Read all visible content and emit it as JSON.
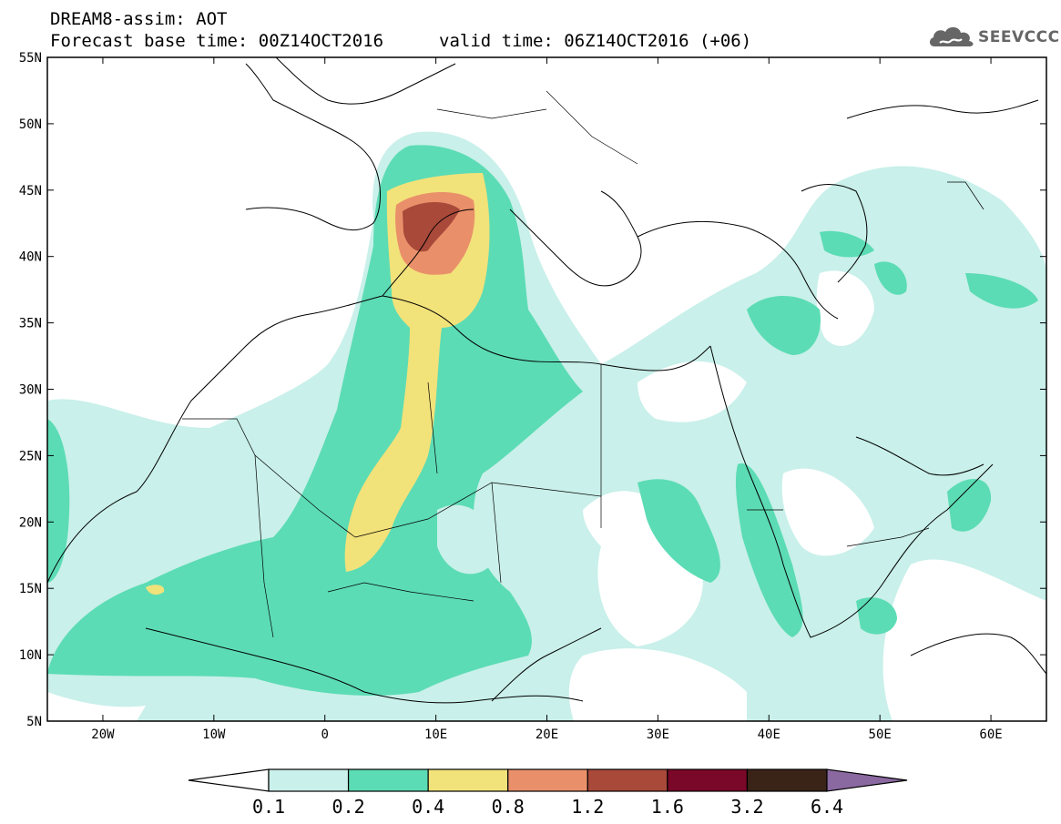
{
  "header": {
    "title": "DREAM8-assim: AOT",
    "forecast": "Forecast base time: 00Z14OCT2016",
    "valid": "valid time: 06Z14OCT2016 (+06)"
  },
  "logo": {
    "text": "SEEVCCC",
    "icon": "cloud-logo-icon"
  },
  "map": {
    "lat_labels": [
      "55N",
      "50N",
      "45N",
      "40N",
      "35N",
      "30N",
      "25N",
      "20N",
      "15N",
      "10N",
      "5N"
    ],
    "lon_labels": [
      "20W",
      "10W",
      "0",
      "10E",
      "20E",
      "30E",
      "40E",
      "50E",
      "60E"
    ],
    "lat_range": [
      5,
      55
    ],
    "lon_range": [
      -25,
      65
    ]
  },
  "colorbar": {
    "labels": [
      "0.1",
      "0.2",
      "0.4",
      "0.8",
      "1.2",
      "1.6",
      "3.2",
      "6.4"
    ],
    "colors": [
      "#c9f0ea",
      "#5cdcb4",
      "#f2e27a",
      "#e9906a",
      "#a8493a",
      "#7a0828",
      "#3a2418",
      "#8a68a0"
    ]
  }
}
